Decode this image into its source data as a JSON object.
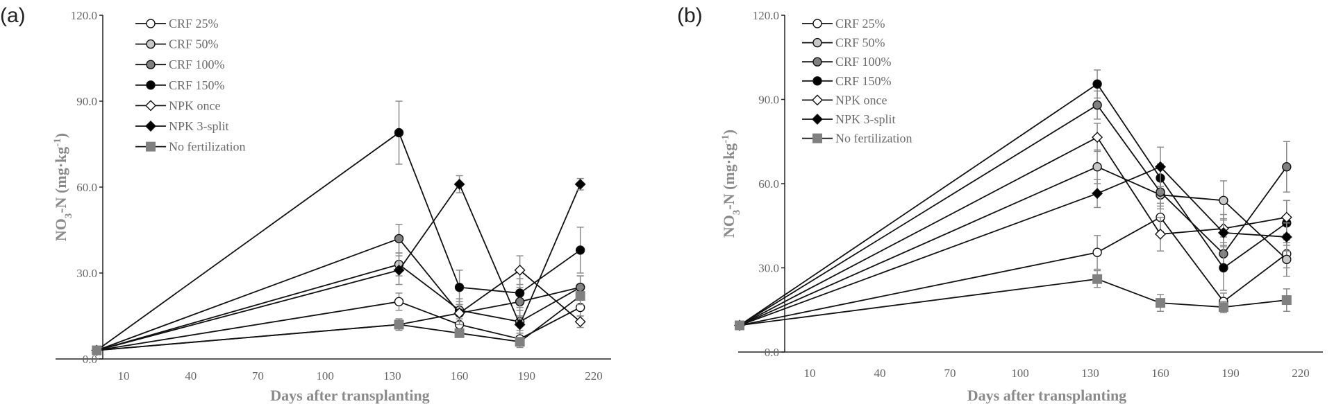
{
  "chart_data": [
    {
      "panel_label": "(a)",
      "type": "line",
      "xlabel": "Days after transplanting",
      "ylabel_main": "NO",
      "ylabel_sub": "3",
      "ylabel_rest": "-N (mg·kg",
      "ylabel_sup": "-1",
      "ylabel_end": ")",
      "ylim": [
        0,
        120
      ],
      "yticks": [
        "0.0",
        "30.0",
        "60.0",
        "90.0",
        "120.0"
      ],
      "xtick_labels": [
        "10",
        "40",
        "70",
        "100",
        "130",
        "160",
        "190",
        "220"
      ],
      "x": [
        -2,
        133,
        160,
        187,
        214
      ],
      "series": [
        {
          "name": "CRF 25%",
          "marker": "circle",
          "fill": "#ffffff",
          "values": [
            3,
            20,
            12,
            7,
            18
          ],
          "errors": [
            0,
            3,
            2,
            3,
            3
          ]
        },
        {
          "name": "CRF 50%",
          "marker": "circle",
          "fill": "#c8c8c8",
          "values": [
            3,
            33,
            17,
            13,
            25
          ],
          "errors": [
            0,
            4,
            4,
            4,
            4
          ]
        },
        {
          "name": "CRF 100%",
          "marker": "circle",
          "fill": "#808080",
          "values": [
            3,
            42,
            16,
            20,
            25
          ],
          "errors": [
            0,
            5,
            4,
            5,
            4
          ]
        },
        {
          "name": "CRF 150%",
          "marker": "circle",
          "fill": "#000000",
          "values": [
            3,
            79,
            25,
            23,
            38
          ],
          "errors": [
            0,
            11,
            6,
            5,
            8
          ]
        },
        {
          "name": "NPK once",
          "marker": "diamond",
          "fill": "#ffffff",
          "values": [
            3,
            12,
            16,
            31,
            13
          ],
          "errors": [
            0,
            2,
            3,
            5,
            2
          ]
        },
        {
          "name": "NPK 3-split",
          "marker": "diamond",
          "fill": "#000000",
          "values": [
            3,
            31,
            61,
            12,
            61
          ],
          "errors": [
            0,
            5,
            3,
            3,
            2
          ]
        },
        {
          "name": "No fertilization",
          "marker": "square",
          "fill": "#808080",
          "values": [
            3,
            12,
            9,
            6,
            22
          ],
          "errors": [
            0,
            2,
            1,
            1,
            3
          ]
        }
      ]
    },
    {
      "panel_label": "(b)",
      "type": "line",
      "xlabel": "Days after transplanting",
      "ylabel_main": "NO",
      "ylabel_sub": "3",
      "ylabel_rest": "-N (mg·kg",
      "ylabel_sup": "-1",
      "ylabel_end": ")",
      "ylim": [
        0,
        120
      ],
      "yticks": [
        "0.0",
        "30.0",
        "60.0",
        "90.0",
        "120.0"
      ],
      "xtick_labels": [
        "10",
        "40",
        "70",
        "100",
        "130",
        "160",
        "190",
        "220"
      ],
      "x": [
        -20,
        133,
        160,
        187,
        214
      ],
      "series": [
        {
          "name": "CRF 25%",
          "marker": "circle",
          "fill": "#ffffff",
          "values": [
            9.5,
            35.5,
            48,
            18,
            35
          ],
          "errors": [
            0,
            6,
            5,
            3,
            5
          ]
        },
        {
          "name": "CRF 50%",
          "marker": "circle",
          "fill": "#c8c8c8",
          "values": [
            9.5,
            66,
            56,
            54,
            33
          ],
          "errors": [
            0,
            6,
            5,
            7,
            6
          ]
        },
        {
          "name": "CRF 100%",
          "marker": "circle",
          "fill": "#808080",
          "values": [
            9.5,
            88,
            57,
            35,
            66
          ],
          "errors": [
            0,
            5,
            5,
            6,
            9
          ]
        },
        {
          "name": "CRF 150%",
          "marker": "circle",
          "fill": "#000000",
          "values": [
            9.5,
            95.5,
            62,
            30,
            46
          ],
          "errors": [
            0,
            5,
            5,
            8,
            8
          ]
        },
        {
          "name": "NPK once",
          "marker": "diamond",
          "fill": "#ffffff",
          "values": [
            9.5,
            76.5,
            42,
            44,
            48
          ],
          "errors": [
            0,
            5,
            6,
            5,
            6
          ]
        },
        {
          "name": "NPK 3-split",
          "marker": "diamond",
          "fill": "#000000",
          "values": [
            9.5,
            56.5,
            66,
            42.5,
            41
          ],
          "errors": [
            0,
            5,
            7,
            5,
            5
          ]
        },
        {
          "name": "No fertilization",
          "marker": "square",
          "fill": "#808080",
          "values": [
            9.5,
            26,
            17.5,
            16,
            18.5
          ],
          "errors": [
            0,
            3,
            3,
            2,
            4
          ]
        }
      ]
    }
  ]
}
